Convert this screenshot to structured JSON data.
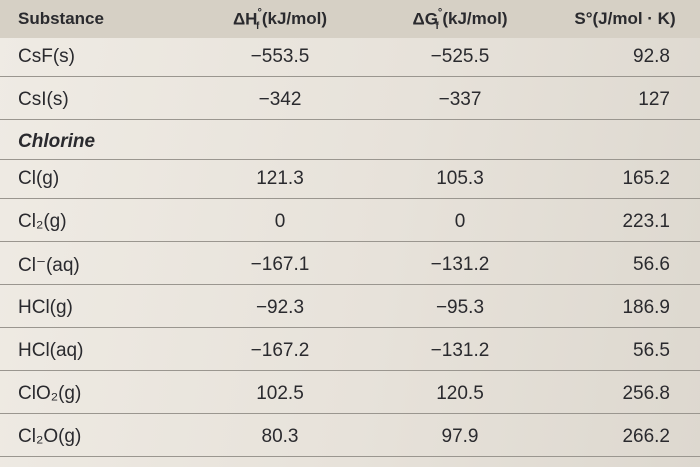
{
  "header": {
    "columns": [
      {
        "text": "Substance"
      },
      {
        "symbol": "ΔH",
        "sup": "°",
        "sub": "f",
        "unit": "(kJ/mol)"
      },
      {
        "symbol": "ΔG",
        "sup": "°",
        "sub": "f",
        "unit": "(kJ/mol)"
      },
      {
        "text": "S°(J/mol · K)"
      }
    ]
  },
  "table": {
    "rows": [
      [
        "CsF(s)",
        "−553.5",
        "−525.5",
        "92.8"
      ],
      [
        "CsI(s)",
        "−342",
        "−337",
        "127"
      ],
      {
        "section": "Chlorine"
      },
      [
        "Cl(g)",
        "121.3",
        "105.3",
        "165.2"
      ],
      [
        "Cl₂(g)",
        "0",
        "0",
        "223.1"
      ],
      [
        "Cl⁻(aq)",
        "−167.1",
        "−131.2",
        "56.6"
      ],
      [
        "HCl(g)",
        "−92.3",
        "−95.3",
        "186.9"
      ],
      [
        "HCl(aq)",
        "−167.2",
        "−131.2",
        "56.5"
      ],
      [
        "ClO₂(g)",
        "102.5",
        "120.5",
        "256.8"
      ],
      [
        "Cl₂O(g)",
        "80.3",
        "97.9",
        "266.2"
      ]
    ]
  }
}
